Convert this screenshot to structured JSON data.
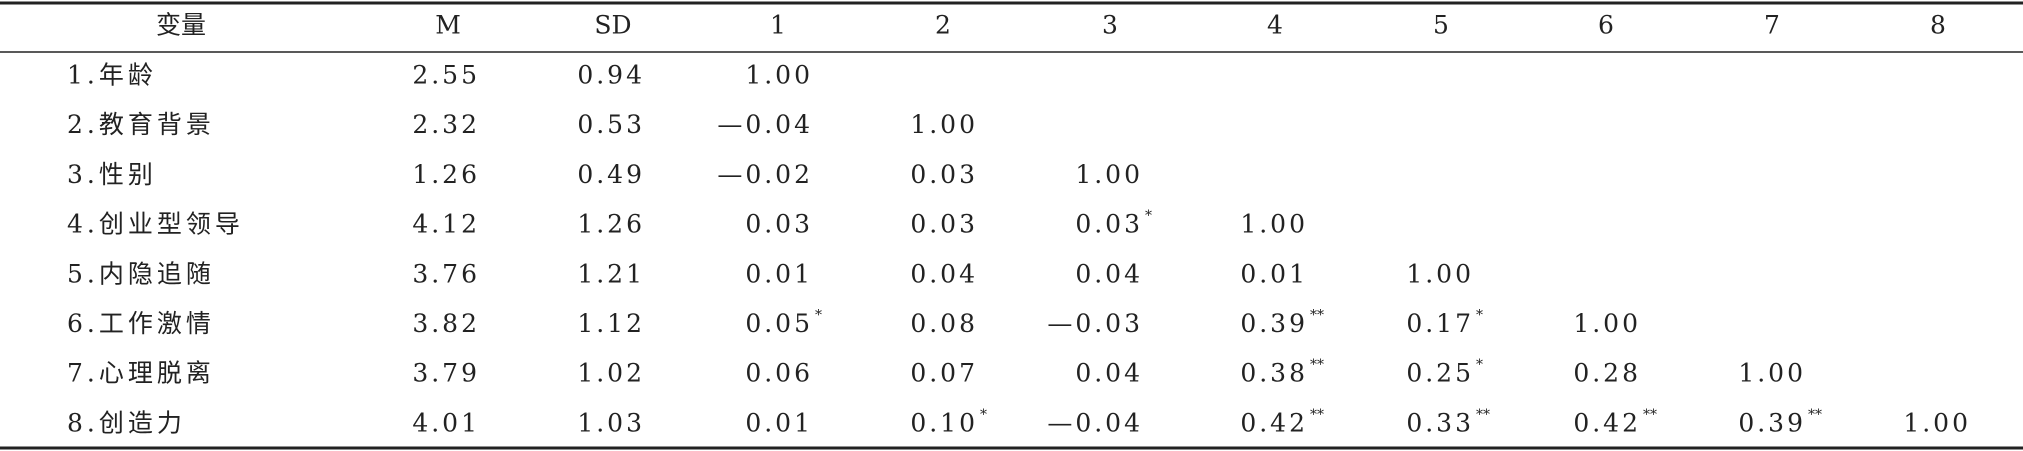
{
  "table": {
    "columns": [
      "变量",
      "M",
      "SD",
      "1",
      "2",
      "3",
      "4",
      "5",
      "6",
      "7",
      "8"
    ],
    "rows": [
      {
        "label": "1.年龄",
        "cells": [
          {
            "text": "2.55"
          },
          {
            "text": "0.94"
          },
          {
            "text": "1.00"
          }
        ]
      },
      {
        "label": "2.教育背景",
        "cells": [
          {
            "text": "2.32"
          },
          {
            "text": "0.53"
          },
          {
            "text": "—0.04"
          },
          {
            "text": "1.00"
          }
        ]
      },
      {
        "label": "3.性别",
        "cells": [
          {
            "text": "1.26"
          },
          {
            "text": "0.49"
          },
          {
            "text": "—0.02"
          },
          {
            "text": "0.03"
          },
          {
            "text": "1.00"
          }
        ]
      },
      {
        "label": "4.创业型领导",
        "cells": [
          {
            "text": "4.12"
          },
          {
            "text": "1.26"
          },
          {
            "text": "0.03"
          },
          {
            "text": "0.03"
          },
          {
            "text": "0.03",
            "sup": "*"
          },
          {
            "text": "1.00"
          }
        ]
      },
      {
        "label": "5.内隐追随",
        "cells": [
          {
            "text": "3.76"
          },
          {
            "text": "1.21"
          },
          {
            "text": "0.01"
          },
          {
            "text": "0.04"
          },
          {
            "text": "0.04"
          },
          {
            "text": "0.01"
          },
          {
            "text": "1.00"
          }
        ]
      },
      {
        "label": "6.工作激情",
        "cells": [
          {
            "text": "3.82"
          },
          {
            "text": "1.12"
          },
          {
            "text": "0.05",
            "sup": "*"
          },
          {
            "text": "0.08"
          },
          {
            "text": "—0.03"
          },
          {
            "text": "0.39",
            "sup": "**"
          },
          {
            "text": "0.17",
            "sup": "*"
          },
          {
            "text": "1.00"
          }
        ]
      },
      {
        "label": "7.心理脱离",
        "cells": [
          {
            "text": "3.79"
          },
          {
            "text": "1.02"
          },
          {
            "text": "0.06"
          },
          {
            "text": "0.07"
          },
          {
            "text": "0.04"
          },
          {
            "text": "0.38",
            "sup": "**"
          },
          {
            "text": "0.25",
            "sup": "*"
          },
          {
            "text": "0.28"
          },
          {
            "text": "1.00"
          }
        ]
      },
      {
        "label": "8.创造力",
        "cells": [
          {
            "text": "4.01"
          },
          {
            "text": "1.03"
          },
          {
            "text": "0.01"
          },
          {
            "text": "0.10",
            "sup": "*"
          },
          {
            "text": "—0.04"
          },
          {
            "text": "0.42",
            "sup": "**"
          },
          {
            "text": "0.33",
            "sup": "**"
          },
          {
            "text": "0.42",
            "sup": "**"
          },
          {
            "text": "0.39",
            "sup": "**"
          },
          {
            "text": "1.00"
          }
        ]
      }
    ]
  }
}
